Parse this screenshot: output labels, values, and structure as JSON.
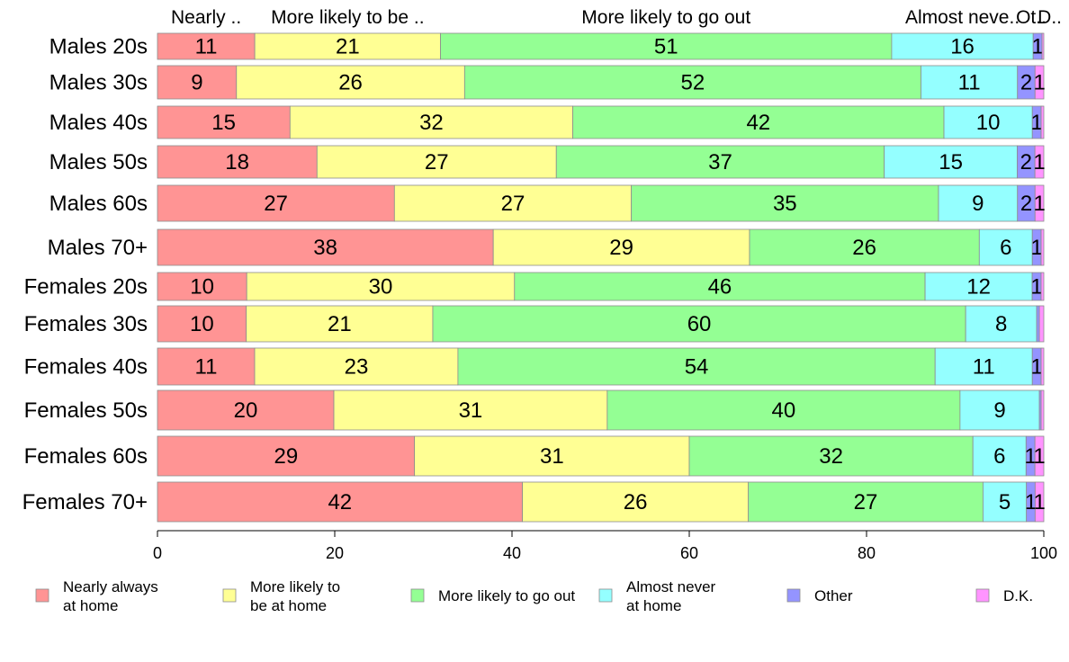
{
  "chart_data": {
    "type": "bar",
    "orientation": "horizontal",
    "stacked": true,
    "categories": [
      "Males 20s",
      "Males 30s",
      "Males 40s",
      "Males 50s",
      "Males 60s",
      "Males 70+",
      "Females 20s",
      "Females 30s",
      "Females 40s",
      "Females 50s",
      "Females 60s",
      "Females 70+"
    ],
    "series": [
      {
        "name": "Nearly always at home",
        "short": "Nearly ..",
        "color": "#ff9494",
        "values": [
          11,
          9,
          15,
          18,
          27,
          38,
          10,
          10,
          11,
          20,
          29,
          42
        ]
      },
      {
        "name": "More likely to be at home",
        "short": "More likely to be ..",
        "color": "#ffff94",
        "values": [
          21,
          26,
          32,
          27,
          27,
          29,
          30,
          21,
          23,
          31,
          31,
          26
        ]
      },
      {
        "name": "More likely to go out",
        "short": "More likely to go out",
        "color": "#94ff94",
        "values": [
          51,
          52,
          42,
          37,
          35,
          26,
          46,
          60,
          54,
          40,
          32,
          27
        ]
      },
      {
        "name": "Almost never at home",
        "short": "Almost neve..",
        "color": "#94ffff",
        "values": [
          16,
          11,
          10,
          15,
          9,
          6,
          12,
          8,
          11,
          9,
          6,
          5
        ]
      },
      {
        "name": "Other",
        "short": "Ot..",
        "color": "#9494ff",
        "values": [
          1,
          2,
          1,
          2,
          2,
          1,
          1,
          0.3,
          1,
          0.2,
          1,
          1
        ]
      },
      {
        "name": "D.K.",
        "short": "D..",
        "color": "#ff94ff",
        "values": [
          0.2,
          1,
          0.3,
          1,
          1,
          0.3,
          0.3,
          0.5,
          0.3,
          0.3,
          1,
          1
        ]
      }
    ],
    "value_labels": [
      [
        "11",
        "21",
        "51",
        "16",
        "1",
        ""
      ],
      [
        "9",
        "26",
        "52",
        "11",
        "2",
        "1"
      ],
      [
        "15",
        "32",
        "42",
        "10",
        "1",
        ""
      ],
      [
        "18",
        "27",
        "37",
        "15",
        "2",
        "1"
      ],
      [
        "27",
        "27",
        "35",
        "9",
        "2",
        "1"
      ],
      [
        "38",
        "29",
        "26",
        "6",
        "1",
        ""
      ],
      [
        "10",
        "30",
        "46",
        "12",
        "1",
        ""
      ],
      [
        "10",
        "21",
        "60",
        "8",
        "",
        ""
      ],
      [
        "11",
        "23",
        "54",
        "11",
        "1",
        ""
      ],
      [
        "20",
        "31",
        "40",
        "9",
        "",
        ""
      ],
      [
        "29",
        "31",
        "32",
        "6",
        "1",
        "1"
      ],
      [
        "42",
        "26",
        "27",
        "5",
        "1",
        "1"
      ]
    ],
    "legend": {
      "position": "bottom",
      "entries": [
        {
          "lines": [
            "Nearly always",
            "at home"
          ]
        },
        {
          "lines": [
            "More likely to",
            "be at home"
          ]
        },
        {
          "lines": [
            "More likely to go out"
          ]
        },
        {
          "lines": [
            "Almost never",
            "at home"
          ]
        },
        {
          "lines": [
            "Other"
          ]
        },
        {
          "lines": [
            "D.K."
          ]
        }
      ]
    },
    "xlim": [
      0,
      100
    ],
    "xticks": [
      0,
      20,
      40,
      60,
      80,
      100
    ],
    "title": "",
    "xlabel": "",
    "ylabel": "",
    "grid": false
  }
}
